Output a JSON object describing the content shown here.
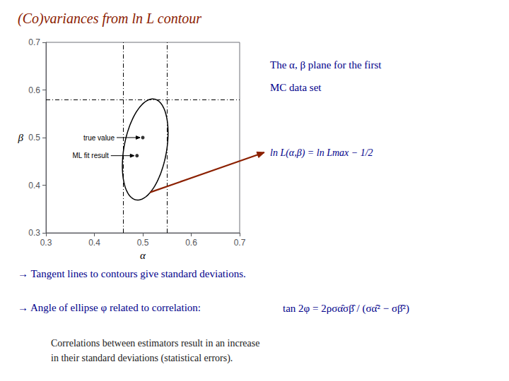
{
  "chart_data": {
    "type": "scatter",
    "title": "(Co)variances from ln L contour",
    "title_color": "#8B2000",
    "xlabel": "α",
    "ylabel": "β",
    "xlim": [
      0.3,
      0.7
    ],
    "ylim": [
      0.3,
      0.7
    ],
    "xticks": [
      0.3,
      0.4,
      0.5,
      0.6,
      0.7
    ],
    "yticks": [
      0.3,
      0.4,
      0.5,
      0.6,
      0.7
    ],
    "grid": false,
    "color": "#000000",
    "points": [
      {
        "label": "true value",
        "x": 0.5,
        "y": 0.5
      },
      {
        "label": "ML fit result",
        "x": 0.488,
        "y": 0.462
      }
    ],
    "vlines": [
      0.462,
      0.552
    ],
    "hlines": [
      0.578
    ],
    "ellipse": {
      "center": [
        0.505,
        0.475
      ],
      "width": 0.088,
      "height": 0.215,
      "angle": -10
    },
    "arrow": {
      "x": 0.515,
      "y": 0.385,
      "color": "#8B2000"
    },
    "text_color": "#00008B",
    "note_color": "#1a1a1a",
    "texts": {
      "plane": [
        "The α, β plane for the first",
        "MC data set"
      ],
      "equation": "ln L(α,β) = ln Lmax − 1/2",
      "tangent": "→ Tangent lines to contours give standard deviations.",
      "angle": "→ Angle of ellipse φ related to correlation:",
      "equation2": "tan 2φ = 2ρσα̂σβ̂ / (σα̂² − σβ̂²)",
      "note": "Correlations between estimators result in an increase\nin their standard deviations (statistical errors)."
    }
  }
}
